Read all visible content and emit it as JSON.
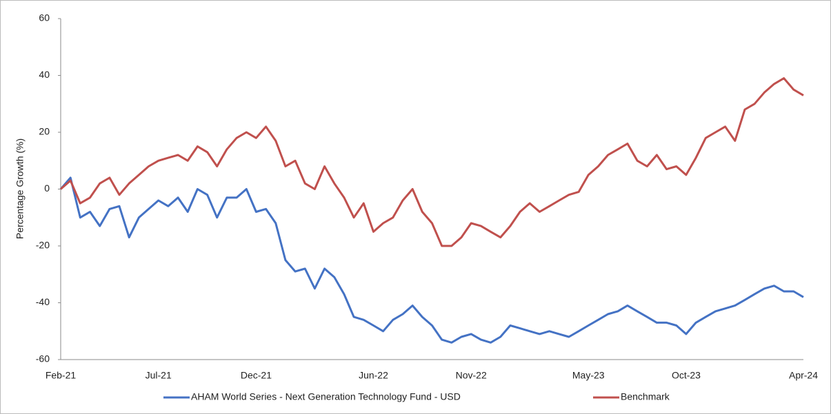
{
  "chart_data": {
    "type": "line",
    "ylabel": "Percentage Growth (%)",
    "categories": [
      "Feb-21",
      null,
      null,
      null,
      null,
      null,
      null,
      null,
      null,
      null,
      "Jul-21",
      null,
      null,
      null,
      null,
      null,
      null,
      null,
      null,
      null,
      "Dec-21",
      null,
      null,
      null,
      null,
      null,
      null,
      null,
      null,
      null,
      null,
      null,
      "Jun-22",
      null,
      null,
      null,
      null,
      null,
      null,
      null,
      null,
      null,
      "Nov-22",
      null,
      null,
      null,
      null,
      null,
      null,
      null,
      null,
      null,
      null,
      null,
      "May-23",
      null,
      null,
      null,
      null,
      null,
      null,
      null,
      null,
      null,
      "Oct-23",
      null,
      null,
      null,
      null,
      null,
      null,
      null,
      null,
      null,
      null,
      null,
      "Apr-24"
    ],
    "series": [
      {
        "name": "AHAM World Series - Next Generation Technology Fund - USD",
        "color": "#4472c4",
        "values": [
          0,
          4,
          -10,
          -8,
          -13,
          -7,
          -6,
          -17,
          -10,
          -7,
          -4,
          -6,
          -3,
          -8,
          0,
          -2,
          -10,
          -3,
          -3,
          0,
          -8,
          -7,
          -12,
          -25,
          -29,
          -28,
          -35,
          -28,
          -31,
          -37,
          -45,
          -46,
          -48,
          -50,
          -46,
          -44,
          -41,
          -45,
          -48,
          -53,
          -54,
          -52,
          -51,
          -53,
          -54,
          -52,
          -48,
          -49,
          -50,
          -51,
          -50,
          -51,
          -52,
          -50,
          -48,
          -46,
          -44,
          -43,
          -41,
          -43,
          -45,
          -47,
          -47,
          -48,
          -51,
          -47,
          -45,
          -43,
          -42,
          -41,
          -39,
          -37,
          -35,
          -34,
          -36,
          -36,
          -38
        ]
      },
      {
        "name": "Benchmark",
        "color": "#c0504d",
        "values": [
          0,
          3,
          -5,
          -3,
          2,
          4,
          -2,
          2,
          5,
          8,
          10,
          11,
          12,
          10,
          15,
          13,
          8,
          14,
          18,
          20,
          18,
          22,
          17,
          8,
          10,
          2,
          0,
          8,
          2,
          -3,
          -10,
          -5,
          -15,
          -12,
          -10,
          -4,
          0,
          -8,
          -12,
          -20,
          -20,
          -17,
          -12,
          -13,
          -15,
          -17,
          -13,
          -8,
          -5,
          -8,
          -6,
          -4,
          -2,
          -1,
          5,
          8,
          12,
          14,
          16,
          10,
          8,
          12,
          7,
          8,
          5,
          11,
          18,
          20,
          22,
          17,
          28,
          30,
          34,
          37,
          39,
          35,
          33
        ]
      }
    ],
    "ylim": [
      -60,
      60
    ],
    "yticks": [
      -60,
      -40,
      -20,
      0,
      20,
      40,
      60
    ],
    "grid": false,
    "legend": "bottom"
  }
}
